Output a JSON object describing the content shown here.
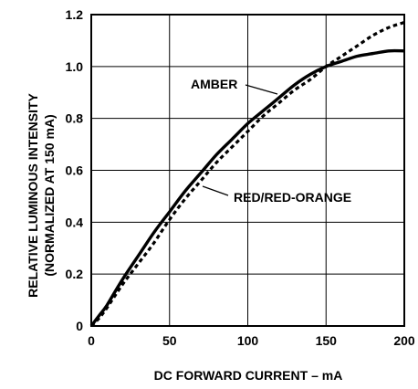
{
  "chart_data": {
    "type": "line",
    "xlabel": "DC FORWARD CURRENT – mA",
    "ylabel_lines": [
      "RELATIVE LUMINOUS INTENSITY",
      "(NORMALIZED AT 150 mA)"
    ],
    "xlim": [
      0,
      200
    ],
    "ylim": [
      0,
      1.2
    ],
    "x_ticks": [
      0,
      50,
      100,
      150,
      200
    ],
    "x_tick_labels": [
      "0",
      "50",
      "100",
      "150",
      "200"
    ],
    "y_ticks": [
      0,
      0.2,
      0.4,
      0.6,
      0.8,
      1.0,
      1.2
    ],
    "y_tick_labels": [
      "0",
      "0.2",
      "0.4",
      "0.6",
      "0.8",
      "1.0",
      "1.2"
    ],
    "grid": true,
    "series": [
      {
        "name": "AMBER",
        "style": "solid",
        "x": [
          0,
          5,
          10,
          20,
          30,
          40,
          50,
          60,
          70,
          80,
          90,
          100,
          110,
          120,
          130,
          140,
          150,
          160,
          170,
          180,
          190,
          200
        ],
        "y": [
          0,
          0.04,
          0.08,
          0.18,
          0.27,
          0.36,
          0.44,
          0.52,
          0.59,
          0.66,
          0.72,
          0.78,
          0.83,
          0.88,
          0.93,
          0.97,
          1.0,
          1.02,
          1.04,
          1.05,
          1.06,
          1.06
        ]
      },
      {
        "name": "RED/RED-ORANGE",
        "style": "dashed",
        "x": [
          0,
          5,
          10,
          20,
          30,
          40,
          50,
          60,
          70,
          80,
          90,
          100,
          110,
          120,
          130,
          140,
          150,
          160,
          170,
          180,
          190,
          200
        ],
        "y": [
          0,
          0.03,
          0.07,
          0.16,
          0.24,
          0.32,
          0.41,
          0.49,
          0.56,
          0.63,
          0.69,
          0.75,
          0.81,
          0.86,
          0.91,
          0.95,
          1.0,
          1.04,
          1.08,
          1.12,
          1.15,
          1.17
        ]
      }
    ],
    "annotations": [
      {
        "text": "AMBER",
        "series": "AMBER"
      },
      {
        "text": "RED/RED-ORANGE",
        "series": "RED/RED-ORANGE"
      }
    ]
  }
}
